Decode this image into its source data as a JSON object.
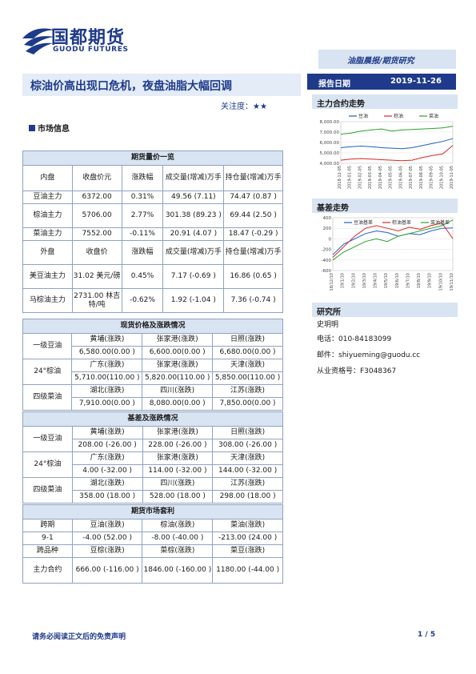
{
  "header": {
    "logo_cn": "国都期货",
    "logo_en": "GUODU FUTURES",
    "report_type": "油脂晨报/期货研究",
    "title": "棕油价高出现口危机，夜盘油脂大幅回调",
    "attention_label": "关注度：",
    "attention_stars": "★★",
    "date_label": "报告日期",
    "date_value": "2019-11-26"
  },
  "section": {
    "market_info": "市场信息"
  },
  "futures_table": {
    "title": "期货量价一览",
    "domestic_header": [
      "内盘",
      "收盘价元",
      "涨跌幅",
      "成交量(增减)万手",
      "持仓量(增减)万手"
    ],
    "domestic_rows": [
      [
        "豆油主力",
        "6372.00",
        "0.31%",
        "49.56 (7.11)",
        "74.47 (0.87 )"
      ],
      [
        "棕油主力",
        "5706.00",
        "2.77%",
        "301.38 (89.23 )",
        "69.44 (2.50 )"
      ],
      [
        "菜油主力",
        "7552.00",
        "-0.11%",
        "20.91 (4.07 )",
        "18.47 (-0.29 )"
      ]
    ],
    "foreign_header": [
      "外盘",
      "收盘价",
      "涨跌幅",
      "成交量(增减)万手",
      "持仓量(增减)万手"
    ],
    "foreign_rows": [
      [
        "美豆油主力",
        "31.02 美元/磅",
        "0.45%",
        "7.17 (-0.69 )",
        "16.86 (0.65 )"
      ],
      [
        "马棕油主力",
        "2731.00 林吉特/吨",
        "-0.62%",
        "1.92 (-1.04 )",
        "7.36 (-0.74 )"
      ]
    ]
  },
  "spot_table": {
    "title": "现货价格及涨跌情况",
    "rows": [
      {
        "label": "一级豆油",
        "regions": [
          "黄埔(涨跌)",
          "张家港(涨跌)",
          "日照(涨跌)"
        ],
        "values": [
          "6,580.00(0.00 )",
          "6,600.00(0.00 )",
          "6,680.00(0.00 )"
        ]
      },
      {
        "label": "24°棕油",
        "regions": [
          "广东(涨跌)",
          "张家港(涨跌)",
          "天津(涨跌)"
        ],
        "values": [
          "5,710.00(110.00 )",
          "5,820.00(110.00 )",
          "5,850.00(110.00 )"
        ]
      },
      {
        "label": "四级菜油",
        "regions": [
          "湖北(涨跌)",
          "四川(涨跌)",
          "江苏(涨跌)"
        ],
        "values": [
          "7,910.00(0.00 )",
          "8,080.00(0.00 )",
          "7,850.00(0.00 )"
        ]
      }
    ]
  },
  "basis_table": {
    "title": "基差及涨跌情况",
    "rows": [
      {
        "label": "一级豆油",
        "regions": [
          "黄埔(涨跌)",
          "张家港(涨跌)",
          "日照(涨跌)"
        ],
        "values": [
          "208.00 (-26.00 )",
          "228.00 (-26.00 )",
          "308.00 (-26.00 )"
        ]
      },
      {
        "label": "24°棕油",
        "regions": [
          "广东(涨跌)",
          "张家港(涨跌)",
          "天津(涨跌)"
        ],
        "values": [
          "4.00 (-32.00 )",
          "114.00 (-32.00 )",
          "144.00 (-32.00 )"
        ]
      },
      {
        "label": "四级菜油",
        "regions": [
          "湖北(涨跌)",
          "四川(涨跌)",
          "江苏(涨跌)"
        ],
        "values": [
          "358.00 (18.00 )",
          "528.00 (18.00 )",
          "298.00 (18.00 )"
        ]
      }
    ]
  },
  "arb_table": {
    "title": "期货市场套利",
    "header1": [
      "跨期",
      "豆油(涨跌)",
      "棕油(涨跌)",
      "菜油(涨跌)"
    ],
    "row1": [
      "9-1",
      "-4.00 (52.00 )",
      "-8.00 (-40.00 )",
      "-213.00 (24.00 )"
    ],
    "header2": [
      "跨品种",
      "豆棕(涨跌)",
      "菜棕(涨跌)",
      "菜豆(涨跌)"
    ],
    "row2": [
      "主力合约",
      "666.00 (-116.00 )",
      "1846.00 (-160.00 )",
      "1180.00 (-44.00 )"
    ]
  },
  "side": {
    "main_contract_title": "主力合约走势",
    "basis_title": "基差走势",
    "researcher_title": "研究所",
    "researcher_name": "史玥明",
    "phone": "电话：010-84183099",
    "email": "邮件：shiyueming@guodu.cc",
    "license": "从业资格号：F3048367"
  },
  "chart_data": [
    {
      "type": "line",
      "title": "主力合约走势",
      "ylim": [
        4000,
        8000
      ],
      "yticks": [
        "8,000.00",
        "7,000.00",
        "6,000.00",
        "5,000.00",
        "4,000.00"
      ],
      "x": [
        "2018-12-05",
        "2019-01-05",
        "2019-02-05",
        "2019-03-05",
        "2019-04-05",
        "2019-05-05",
        "2019-06-05",
        "2019-07-05",
        "2019-08-05",
        "2019-09-05",
        "2019-10-05",
        "2019-11-05"
      ],
      "series": [
        {
          "name": "豆油",
          "color": "#1f5fbf",
          "values": [
            5500,
            5600,
            5650,
            5600,
            5500,
            5450,
            5400,
            5500,
            5700,
            5900,
            6100,
            6372
          ]
        },
        {
          "name": "棕油",
          "color": "#d62728",
          "values": [
            4300,
            4400,
            4450,
            4400,
            4350,
            4300,
            4250,
            4300,
            4550,
            4750,
            4900,
            5706
          ]
        },
        {
          "name": "菜油",
          "color": "#2ca02c",
          "values": [
            6800,
            6900,
            7100,
            7200,
            7300,
            7100,
            7200,
            7250,
            7300,
            7350,
            7400,
            7552
          ]
        }
      ]
    },
    {
      "type": "line",
      "title": "基差走势",
      "ylim": [
        -600,
        400
      ],
      "yticks": [
        "400",
        "200",
        "0",
        "-200",
        "-400",
        "-600"
      ],
      "x": [
        "18/12/10",
        "19/1/10",
        "19/2/10",
        "19/3/10",
        "19/4/10",
        "19/5/10",
        "19/6/10",
        "19/7/10",
        "19/8/10",
        "19/9/10",
        "19/10/10",
        "19/11/10"
      ],
      "series": [
        {
          "name": "豆油基差",
          "color": "#1f5fbf",
          "values": [
            -300,
            -100,
            0,
            100,
            150,
            120,
            50,
            100,
            80,
            150,
            200,
            208
          ]
        },
        {
          "name": "棕油基差",
          "color": "#d62728",
          "values": [
            -350,
            -150,
            50,
            200,
            250,
            200,
            150,
            220,
            180,
            250,
            300,
            4
          ]
        },
        {
          "name": "菜油基差",
          "color": "#2ca02c",
          "values": [
            -400,
            -250,
            -150,
            -50,
            0,
            -50,
            50,
            100,
            150,
            200,
            250,
            358
          ]
        }
      ]
    }
  ],
  "footer": {
    "disclaimer": "请务必阅读正文后的免责声明",
    "page": "1 / 5"
  }
}
